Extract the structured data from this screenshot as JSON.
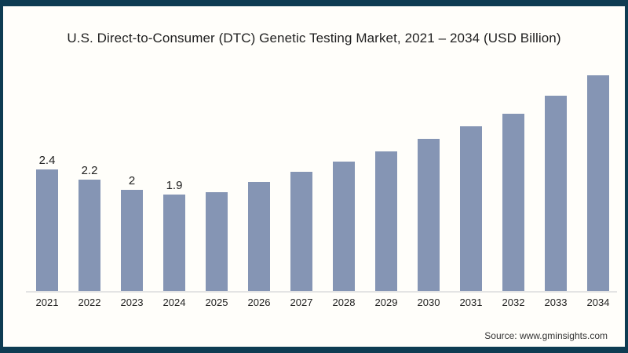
{
  "chart": {
    "title": "U.S. Direct-to-Consumer (DTC) Genetic Testing Market, 2021 – 2034 (USD Billion)"
  },
  "source": {
    "text": "Source: www.gminsights.com"
  },
  "colors": {
    "bar": "#8595B4",
    "border": "#0E3C52",
    "background": "#FFFEFA",
    "axis_line": "#E4E4E4",
    "text": "#1F1F1F"
  },
  "chart_data": {
    "type": "bar",
    "title": "U.S. Direct-to-Consumer (DTC) Genetic Testing Market, 2021 – 2034 (USD Billion)",
    "categories": [
      "2021",
      "2022",
      "2023",
      "2024",
      "2025",
      "2026",
      "2027",
      "2028",
      "2029",
      "2030",
      "2031",
      "2032",
      "2033",
      "2034"
    ],
    "values": [
      2.4,
      2.2,
      2.0,
      1.9,
      1.95,
      2.15,
      2.35,
      2.55,
      2.75,
      3.0,
      3.25,
      3.5,
      3.85,
      4.25
    ],
    "value_labels": [
      "2.4",
      "2.2",
      "2",
      "1.9",
      "",
      "",
      "",
      "",
      "",
      "",
      "",
      "",
      "",
      ""
    ],
    "xlabel": "",
    "ylabel": "",
    "ylim": [
      0,
      4.3
    ],
    "grid": false,
    "legend": false,
    "data_labels_shown_for": [
      "2021",
      "2022",
      "2023",
      "2024"
    ]
  }
}
